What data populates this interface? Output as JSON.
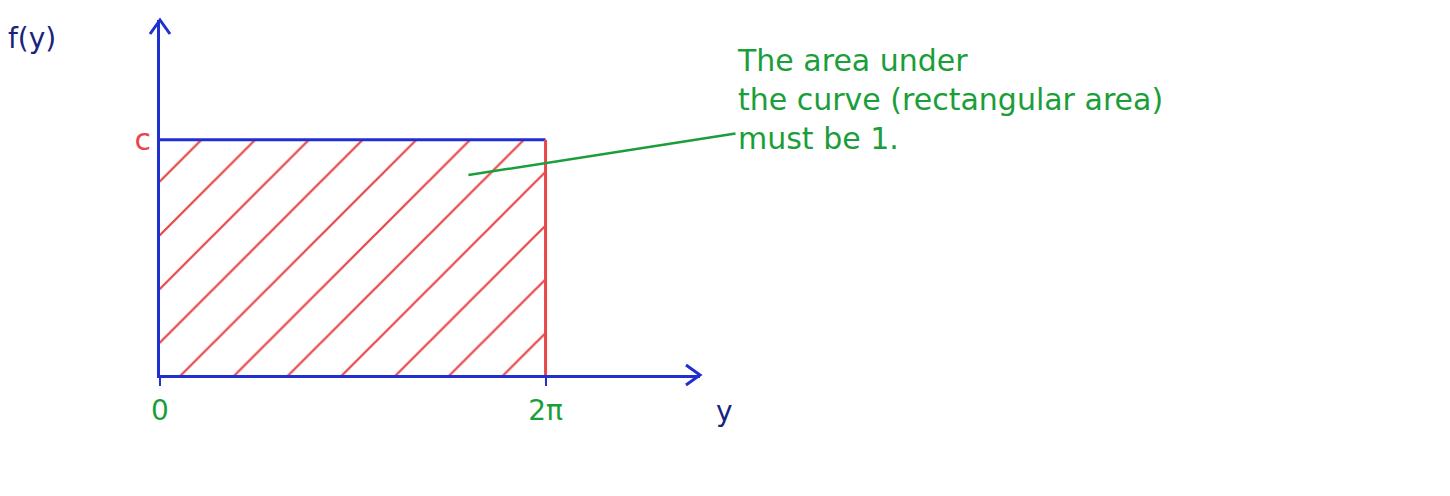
{
  "chart_data": {
    "type": "area",
    "x": [
      0,
      6.283
    ],
    "values": [
      0.159,
      0.159
    ],
    "color": "#e8474a",
    "xlim": [
      0,
      8.8
    ],
    "ylim": [
      0,
      0.24
    ],
    "xticks": [
      0,
      {
        "value": 6.283,
        "label": "2π"
      }
    ],
    "yticks": [
      {
        "value": 0.159,
        "label": "c"
      }
    ],
    "x_label": "y",
    "y_label": "f(y)",
    "annotations": [
      {
        "lines": [
          "The area under",
          "the curve (rectangular area)",
          "must be 1."
        ]
      }
    ],
    "grid": false
  }
}
